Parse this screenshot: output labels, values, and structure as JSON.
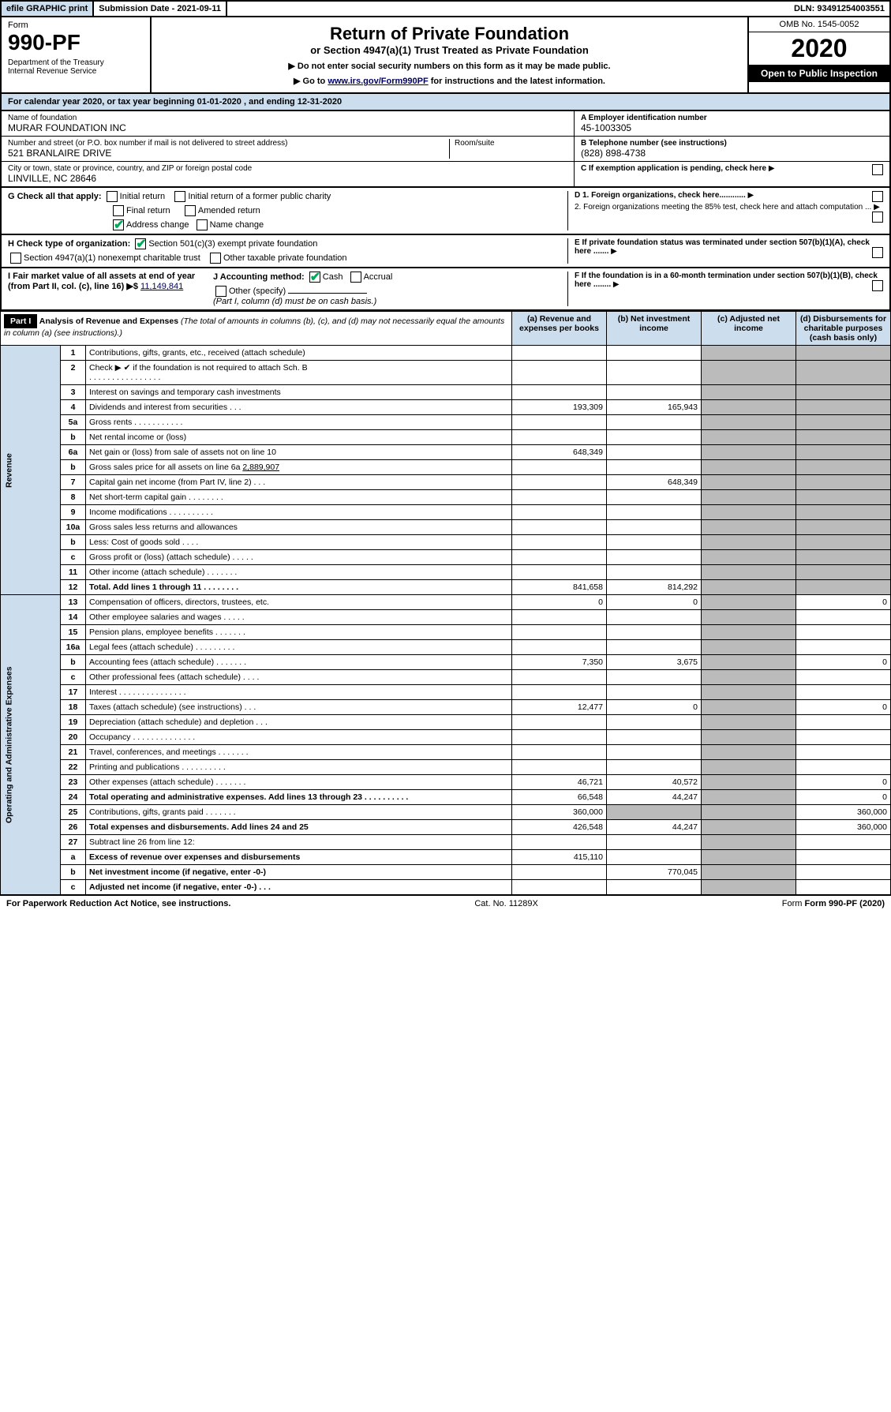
{
  "topbar": {
    "efile": "efile GRAPHIC print",
    "subdate_label": "Submission Date - 2021-09-11",
    "dln_label": "DLN: 93491254003551"
  },
  "header": {
    "form_label": "Form",
    "form_num": "990-PF",
    "dept": "Department of the Treasury\nInternal Revenue Service",
    "title": "Return of Private Foundation",
    "subtitle": "or Section 4947(a)(1) Trust Treated as Private Foundation",
    "instr1": "▶ Do not enter social security numbers on this form as it may be made public.",
    "instr2": "▶ Go to ",
    "instr_link": "www.irs.gov/Form990PF",
    "instr3": " for instructions and the latest information.",
    "omb": "OMB No. 1545-0052",
    "year": "2020",
    "open": "Open to Public Inspection"
  },
  "calrow": "For calendar year 2020, or tax year beginning 01-01-2020             , and ending 12-31-2020",
  "id": {
    "name_label": "Name of foundation",
    "name": "MURAR FOUNDATION INC",
    "addr_label": "Number and street (or P.O. box number if mail is not delivered to street address)",
    "addr": "521 BRANLAIRE DRIVE",
    "room_label": "Room/suite",
    "city_label": "City or town, state or province, country, and ZIP or foreign postal code",
    "city": "LINVILLE, NC  28646",
    "a_label": "A Employer identification number",
    "a_val": "45-1003305",
    "b_label": "B Telephone number (see instructions)",
    "b_val": "(828) 898-4738",
    "c_label": "C If exemption application is pending, check here"
  },
  "checks": {
    "g_label": "G Check all that apply:",
    "g1": "Initial return",
    "g2": "Initial return of a former public charity",
    "g3": "Final return",
    "g4": "Amended return",
    "g5": "Address change",
    "g6": "Name change",
    "h_label": "H Check type of organization:",
    "h1": "Section 501(c)(3) exempt private foundation",
    "h2": "Section 4947(a)(1) nonexempt charitable trust",
    "h3": "Other taxable private foundation",
    "i_label": "I Fair market value of all assets at end of year (from Part II, col. (c), line 16) ▶$",
    "i_val": "11,149,841",
    "j_label": "J Accounting method:",
    "j1": "Cash",
    "j2": "Accrual",
    "j3": "Other (specify)",
    "j_note": "(Part I, column (d) must be on cash basis.)",
    "d_label": "D 1. Foreign organizations, check here............",
    "d2_label": "2. Foreign organizations meeting the 85% test, check here and attach computation ...",
    "e_label": "E  If private foundation status was terminated under section 507(b)(1)(A), check here .......",
    "f_label": "F  If the foundation is in a 60-month termination under section 507(b)(1)(B), check here ........"
  },
  "part1": {
    "bar": "Part I",
    "title": "Analysis of Revenue and Expenses",
    "title_note": "(The total of amounts in columns (b), (c), and (d) may not necessarily equal the amounts in column (a) (see instructions).)",
    "col_a": "(a)   Revenue and expenses per books",
    "col_b": "(b)  Net investment income",
    "col_c": "(c)  Adjusted net income",
    "col_d": "(d)  Disbursements for charitable purposes (cash basis only)",
    "side_rev": "Revenue",
    "side_exp": "Operating and Administrative Expenses"
  },
  "rows": [
    {
      "n": "1",
      "label": "Contributions, gifts, grants, etc., received (attach schedule)"
    },
    {
      "n": "2",
      "label": "Check ▶ ✔ if the foundation is not required to attach Sch. B",
      "note": ".  .  .  .  .  .  .  .  .  .  .  .  .  .  .  ."
    },
    {
      "n": "3",
      "label": "Interest on savings and temporary cash investments"
    },
    {
      "n": "4",
      "label": "Dividends and interest from securities   .   .   .",
      "a": "193,309",
      "b": "165,943"
    },
    {
      "n": "5a",
      "label": "Gross rents   .   .   .   .   .   .   .   .   .   .   ."
    },
    {
      "n": "b",
      "label": "Net rental income or (loss)  "
    },
    {
      "n": "6a",
      "label": "Net gain or (loss) from sale of assets not on line 10",
      "a": "648,349"
    },
    {
      "n": "b",
      "label": "Gross sales price for all assets on line 6a ",
      "inline": "2,889,907"
    },
    {
      "n": "7",
      "label": "Capital gain net income (from Part IV, line 2)   .   .   .",
      "b": "648,349"
    },
    {
      "n": "8",
      "label": "Net short-term capital gain    .   .   .   .   .   .   .   ."
    },
    {
      "n": "9",
      "label": "Income modifications   .   .   .   .   .   .   .   .   .   ."
    },
    {
      "n": "10a",
      "label": "Gross sales less returns and allowances "
    },
    {
      "n": "b",
      "label": "Less: Cost of goods sold   .   .   .   ."
    },
    {
      "n": "c",
      "label": "Gross profit or (loss) (attach schedule)    .   .   .   .   ."
    },
    {
      "n": "11",
      "label": "Other income (attach schedule)    .   .   .   .   .   .   ."
    },
    {
      "n": "12",
      "label": "Total. Add lines 1 through 11   .   .   .   .   .   .   .   .",
      "bold": true,
      "a": "841,658",
      "b": "814,292"
    },
    {
      "n": "13",
      "label": "Compensation of officers, directors, trustees, etc.",
      "a": "0",
      "b": "0",
      "d": "0"
    },
    {
      "n": "14",
      "label": "Other employee salaries and wages    .   .   .   .   ."
    },
    {
      "n": "15",
      "label": "Pension plans, employee benefits   .   .   .   .   .   .   ."
    },
    {
      "n": "16a",
      "label": "Legal fees (attach schedule)  .   .   .   .   .   .   .   .   ."
    },
    {
      "n": "b",
      "label": "Accounting fees (attach schedule)   .   .   .   .   .   .   .",
      "a": "7,350",
      "b": "3,675",
      "d": "0"
    },
    {
      "n": "c",
      "label": "Other professional fees (attach schedule)    .   .   .   ."
    },
    {
      "n": "17",
      "label": "Interest   .   .   .   .   .   .   .   .   .   .   .   .   .   .   ."
    },
    {
      "n": "18",
      "label": "Taxes (attach schedule) (see instructions)    .   .   .",
      "a": "12,477",
      "b": "0",
      "d": "0"
    },
    {
      "n": "19",
      "label": "Depreciation (attach schedule) and depletion   .   .   ."
    },
    {
      "n": "20",
      "label": "Occupancy  .   .   .   .   .   .   .   .   .   .   .   .   .   ."
    },
    {
      "n": "21",
      "label": "Travel, conferences, and meetings  .   .   .   .   .   .   ."
    },
    {
      "n": "22",
      "label": "Printing and publications   .   .   .   .   .   .   .   .   .   ."
    },
    {
      "n": "23",
      "label": "Other expenses (attach schedule)   .   .   .   .   .   .   .",
      "a": "46,721",
      "b": "40,572",
      "d": "0"
    },
    {
      "n": "24",
      "label": "Total operating and administrative expenses. Add lines 13 through 23   .   .   .   .   .   .   .   .   .   .",
      "bold": true,
      "a": "66,548",
      "b": "44,247",
      "d": "0"
    },
    {
      "n": "25",
      "label": "Contributions, gifts, grants paid    .   .   .   .   .   .   .",
      "a": "360,000",
      "d": "360,000"
    },
    {
      "n": "26",
      "label": "Total expenses and disbursements. Add lines 24 and 25",
      "bold": true,
      "a": "426,548",
      "b": "44,247",
      "d": "360,000"
    },
    {
      "n": "27",
      "label": "Subtract line 26 from line 12:"
    },
    {
      "n": "a",
      "label": "Excess of revenue over expenses and disbursements",
      "bold": true,
      "a": "415,110"
    },
    {
      "n": "b",
      "label": "Net investment income (if negative, enter -0-)",
      "bold": true,
      "b": "770,045"
    },
    {
      "n": "c",
      "label": "Adjusted net income (if negative, enter -0-)   .   .   .",
      "bold": true
    }
  ],
  "footer": {
    "left": "For Paperwork Reduction Act Notice, see instructions.",
    "mid": "Cat. No. 11289X",
    "right": "Form 990-PF (2020)"
  }
}
